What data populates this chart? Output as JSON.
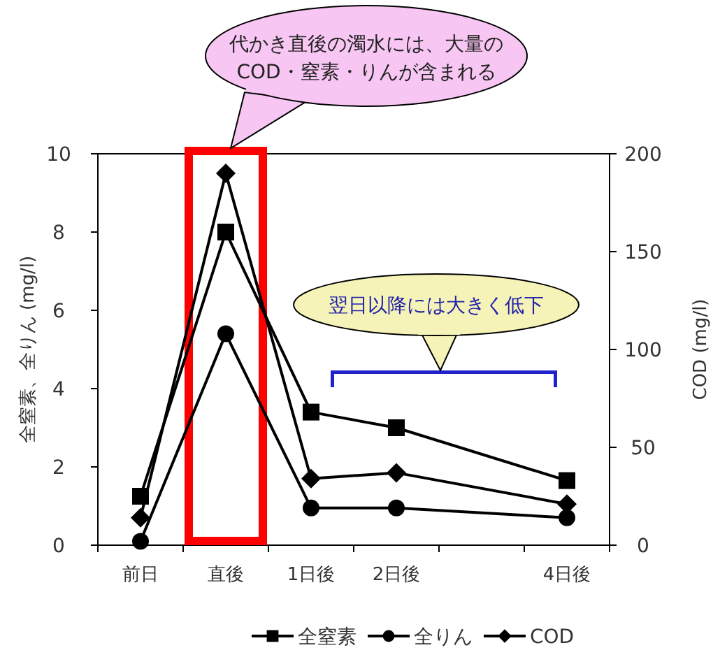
{
  "chart_data": {
    "type": "line",
    "categories": [
      "前日",
      "直後",
      "1日後",
      "2日後",
      null,
      "4日後"
    ],
    "series": [
      {
        "name": "全窒素",
        "color": "#000000",
        "marker": "square",
        "values": [
          1.25,
          8.0,
          3.4,
          3.0,
          null,
          1.65
        ]
      },
      {
        "name": "全りん",
        "color": "#000000",
        "marker": "circle",
        "values": [
          0.1,
          5.4,
          0.95,
          0.95,
          null,
          0.7
        ]
      },
      {
        "name": "COD",
        "color": "#000000",
        "marker": "diamond",
        "axis": "y2",
        "values": [
          14,
          190,
          34,
          37,
          null,
          21
        ]
      }
    ],
    "ylabel": "全窒素、全りん (mg/l)",
    "y2label": "COD (mg/l)",
    "ylim": [
      0,
      10
    ],
    "yticks": [
      0,
      2,
      4,
      6,
      8,
      10
    ],
    "y2lim": [
      0,
      200
    ],
    "y2ticks": [
      0,
      50,
      100,
      150,
      200
    ],
    "annotations": [
      "代かき直後の濁水には、大量のCOD・窒素・りんが含まれる",
      "翌日以降には大きく低下"
    ],
    "legend": "bottom",
    "grid": false
  }
}
